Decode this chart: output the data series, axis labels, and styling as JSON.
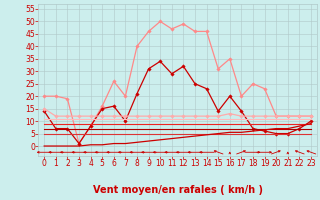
{
  "xlabel": "Vent moyen/en rafales ( km/h )",
  "xlim": [
    -0.5,
    23.5
  ],
  "ylim": [
    -4,
    57
  ],
  "yticks": [
    0,
    5,
    10,
    15,
    20,
    25,
    30,
    35,
    40,
    45,
    50,
    55
  ],
  "xticks": [
    0,
    1,
    2,
    3,
    4,
    5,
    6,
    7,
    8,
    9,
    10,
    11,
    12,
    13,
    14,
    15,
    16,
    17,
    18,
    19,
    20,
    21,
    22,
    23
  ],
  "bg_color": "#cceeed",
  "grid_color": "#b0c8c8",
  "series": [
    {
      "name": "light_pink_top",
      "color": "#ff8888",
      "lw": 0.9,
      "marker": "D",
      "ms": 1.8,
      "y": [
        20,
        20,
        19,
        1,
        8,
        16,
        26,
        20,
        40,
        46,
        50,
        47,
        49,
        46,
        46,
        31,
        35,
        20,
        25,
        23,
        12,
        12,
        12,
        12
      ]
    },
    {
      "name": "dark_red_mid",
      "color": "#cc0000",
      "lw": 0.9,
      "marker": "D",
      "ms": 1.8,
      "y": [
        14,
        7,
        7,
        1,
        8,
        15,
        16,
        10,
        21,
        31,
        34,
        29,
        32,
        25,
        23,
        14,
        20,
        14,
        7,
        6,
        5,
        5,
        7,
        10
      ]
    },
    {
      "name": "flat_pink_upper",
      "color": "#ffaaaa",
      "lw": 0.9,
      "marker": "D",
      "ms": 1.8,
      "y": [
        15,
        12,
        12,
        12,
        12,
        12,
        12,
        12,
        12,
        12,
        12,
        12,
        12,
        12,
        12,
        12,
        13,
        12,
        12,
        12,
        12,
        12,
        12,
        12
      ]
    },
    {
      "name": "flat_pink_mid",
      "color": "#ffbbbb",
      "lw": 0.8,
      "marker": null,
      "ms": 0,
      "y": [
        11,
        11,
        11,
        11,
        11,
        11,
        11,
        11,
        11,
        11,
        11,
        11,
        11,
        11,
        11,
        11,
        11,
        11,
        11,
        11,
        11,
        11,
        11,
        11
      ]
    },
    {
      "name": "flat_red1",
      "color": "#ee2222",
      "lw": 0.8,
      "marker": null,
      "ms": 0,
      "y": [
        9,
        9,
        9,
        9,
        9,
        9,
        9,
        9,
        9,
        9,
        9,
        9,
        9,
        9,
        9,
        9,
        9,
        9,
        9,
        9,
        9,
        9,
        9,
        9
      ]
    },
    {
      "name": "flat_dark_red",
      "color": "#aa0000",
      "lw": 0.8,
      "marker": null,
      "ms": 0,
      "y": [
        7,
        7,
        7,
        7,
        7,
        7,
        7,
        7,
        7,
        7,
        7,
        7,
        7,
        7,
        7,
        7,
        7,
        7,
        7,
        7,
        7,
        7,
        7,
        7
      ]
    },
    {
      "name": "flat_red2",
      "color": "#dd3333",
      "lw": 0.8,
      "marker": null,
      "ms": 0,
      "y": [
        5,
        5,
        5,
        5,
        5,
        5,
        5,
        5,
        5,
        5,
        5,
        5,
        5,
        5,
        5,
        5,
        5,
        5,
        5,
        5,
        5,
        5,
        5,
        5
      ]
    },
    {
      "name": "rising_red",
      "color": "#cc0000",
      "lw": 0.9,
      "marker": null,
      "ms": 0,
      "y": [
        0,
        0,
        0,
        0,
        0.5,
        0.5,
        1,
        1,
        1.5,
        2,
        2.5,
        3,
        3.5,
        4,
        4.5,
        5,
        5.5,
        5.5,
        6,
        6.5,
        7,
        7,
        8,
        9
      ]
    }
  ],
  "arrow_angles": [
    180,
    180,
    180,
    180,
    180,
    180,
    180,
    180,
    180,
    180,
    180,
    180,
    180,
    180,
    180,
    135,
    90,
    45,
    0,
    0,
    45,
    90,
    135,
    135
  ],
  "font_color": "#cc0000",
  "tick_fontsize": 5.5,
  "label_fontsize": 7
}
